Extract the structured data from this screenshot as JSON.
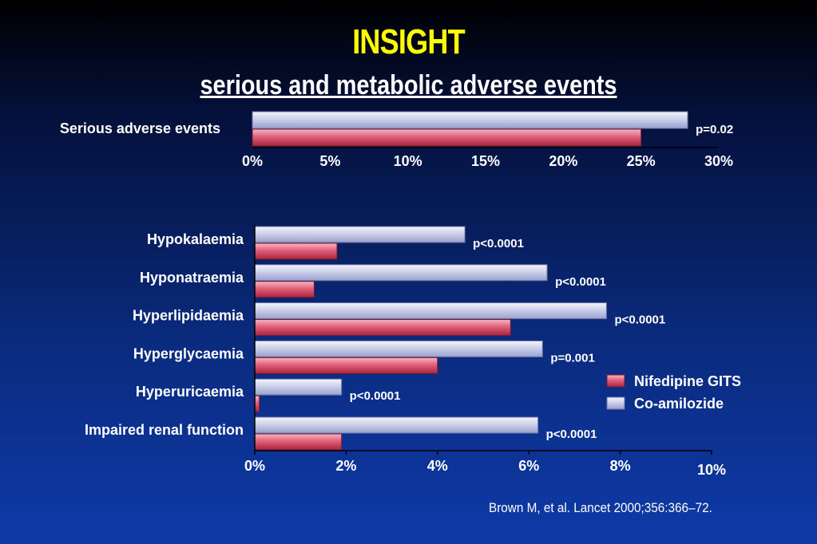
{
  "title": "INSIGHT",
  "subtitle": "serious and metabolic adverse events",
  "citation": "Brown M, et al. Lancet 2000;356:366–72.",
  "colors": {
    "nifedipine": "#e0607a",
    "coamilozide": "#c8cce8",
    "title": "#ffff00",
    "background": "#0a2a7c"
  },
  "chart_data": [
    {
      "type": "bar",
      "orientation": "horizontal",
      "categories": [
        "Serious adverse events"
      ],
      "series": [
        {
          "name": "Co-amilozide",
          "values": [
            28.0
          ]
        },
        {
          "name": "Nifedipine GITS",
          "values": [
            25.0
          ]
        }
      ],
      "p_values": [
        "p=0.02"
      ],
      "xlim": [
        0,
        30
      ],
      "tick_labels": [
        "0%",
        "5%",
        "10%",
        "15%",
        "20%",
        "25%",
        "30%"
      ]
    },
    {
      "type": "bar",
      "orientation": "horizontal",
      "categories": [
        "Hypokalaemia",
        "Hyponatraemia",
        "Hyperlipidaemia",
        "Hyperglycaemia",
        "Hyperuricaemia",
        "Impaired renal function"
      ],
      "series": [
        {
          "name": "Co-amilozide",
          "values": [
            4.6,
            6.4,
            7.7,
            6.3,
            1.9,
            6.2
          ]
        },
        {
          "name": "Nifedipine GITS",
          "values": [
            1.8,
            1.3,
            5.6,
            4.0,
            0.1,
            1.9
          ]
        }
      ],
      "p_values": [
        "p<0.0001",
        "p<0.0001",
        "p<0.0001",
        "p=0.001",
        "p<0.0001",
        "p<0.0001"
      ],
      "xlim": [
        0,
        10
      ],
      "tick_labels": [
        "0%",
        "2%",
        "4%",
        "6%",
        "8%",
        "10%"
      ],
      "legend": {
        "position": "right",
        "items": [
          "Nifedipine GITS",
          "Co-amilozide"
        ]
      }
    }
  ]
}
